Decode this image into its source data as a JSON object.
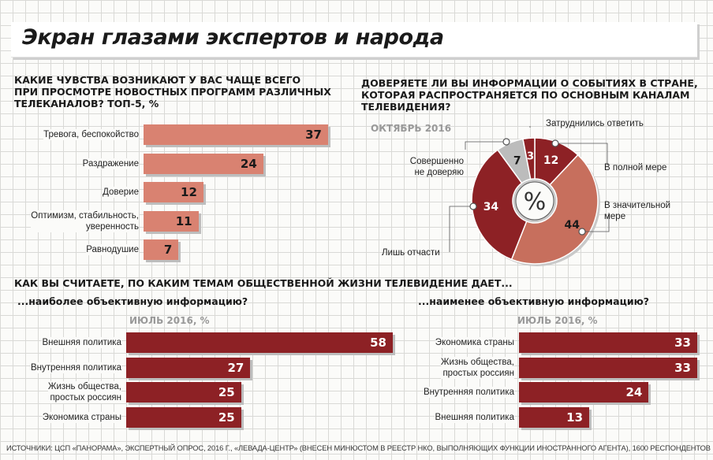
{
  "title": "Экран глазами экспертов и народа",
  "colors": {
    "light_red": "#d98271",
    "dark_red": "#8d2125",
    "pie_gray": "#bcbcbc",
    "pie_mid": "#c76f5d"
  },
  "chart_data": [
    {
      "type": "bar",
      "title_lines": [
        "КАКИЕ ЧУВСТВА ВОЗНИКАЮТ У ВАС ЧАЩЕ ВСЕГО",
        "ПРИ ПРОСМОТРЕ НОВОСТНЫХ ПРОГРАММ РАЗЛИЧНЫХ",
        "ТЕЛЕКАНАЛОВ? Топ-5, %"
      ],
      "categories": [
        [
          "Тревога, беспокойство"
        ],
        [
          "Раздражение"
        ],
        [
          "Доверие"
        ],
        [
          "Оптимизм, стабильность,",
          "уверенность"
        ],
        [
          "Равнодушие"
        ]
      ],
      "values": [
        37,
        24,
        12,
        11,
        7
      ],
      "xlim": [
        0,
        37
      ]
    },
    {
      "type": "pie",
      "title_lines": [
        "ДОВЕРЯЕТЕ ЛИ ВЫ ИНФОРМАЦИИ О СОБЫТИЯХ В СТРАНЕ,",
        "КОТОРАЯ РАСПРОСТРАНЯЕТСЯ ПО ОСНОВНЫМ КАНАЛАМ",
        "ТЕЛЕВИДЕНИЯ?"
      ],
      "subtitle": "ОКТЯБРЬ 2016",
      "center_label": "%",
      "slices": [
        {
          "label": [
            "В полной мере"
          ],
          "value": 12,
          "color": "#8d2125"
        },
        {
          "label": [
            "В значительной",
            "мере"
          ],
          "value": 44,
          "color": "#c76f5d"
        },
        {
          "label": [
            "Лишь отчасти"
          ],
          "value": 34,
          "color": "#8d2125"
        },
        {
          "label": [
            "Совершенно",
            "не доверяю"
          ],
          "value": 7,
          "color": "#bcbcbc"
        },
        {
          "label": [
            "Затруднились ответить"
          ],
          "value": 3,
          "color": "#8d2125"
        }
      ]
    },
    {
      "type": "bar",
      "title": "...наиболее объективную информацию?",
      "subtitle": "ИЮЛЬ 2016, %",
      "categories": [
        [
          "Внешняя политика"
        ],
        [
          "Внутренняя политика"
        ],
        [
          "Жизнь общества,",
          "простых россиян"
        ],
        [
          "Экономика страны"
        ]
      ],
      "values": [
        58,
        27,
        25,
        25
      ],
      "xlim": [
        0,
        58
      ]
    },
    {
      "type": "bar",
      "title": "...наименее объективную информацию?",
      "subtitle": "ИЮЛЬ 2016, %",
      "categories": [
        [
          "Экономика страны"
        ],
        [
          "Жизнь общества,",
          "простых россиян"
        ],
        [
          "Внутренняя политика"
        ],
        [
          "Внешняя политика"
        ]
      ],
      "values": [
        33,
        33,
        24,
        13
      ],
      "xlim": [
        0,
        33
      ]
    }
  ],
  "bottom_question": "КАК ВЫ СЧИТАЕТЕ, ПО КАКИМ ТЕМАМ ОБЩЕСТВЕННОЙ ЖИЗНИ ТЕЛЕВИДЕНИЕ ДАЕТ...",
  "source": "ИСТОЧНИКИ: ЦСП «ПАНОРАМА», ЭКСПЕРТНЫЙ ОПРОС, 2016 Г., «ЛЕВАДА-ЦЕНТР» (ВНЕСЕН МИНЮСТОМ В РЕЕСТР НКО, ВЫПОЛНЯЮЩИХ ФУНКЦИИ ИНОСТРАННОГО АГЕНТА), 1600 РЕСПОНДЕНТОВ"
}
